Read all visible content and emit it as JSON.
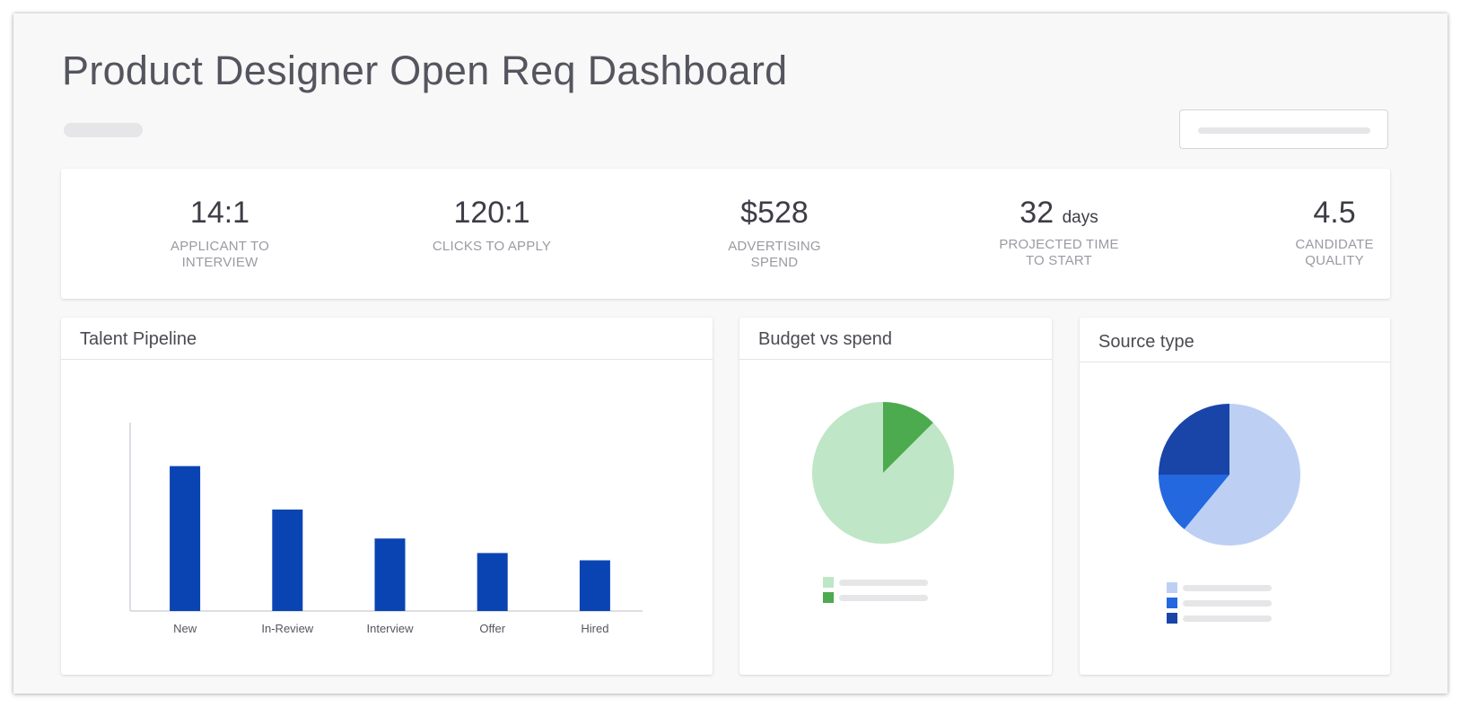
{
  "header": {
    "title": "Product Designer Open Req Dashboard"
  },
  "kpis": [
    {
      "value": "14:1",
      "unit": "",
      "label_line1": "APPLICANT TO",
      "label_line2": "INTERVIEW"
    },
    {
      "value": "120:1",
      "unit": "",
      "label_line1": "CLICKS TO APPLY",
      "label_line2": ""
    },
    {
      "value": "$528",
      "unit": "",
      "label_line1": "ADVERTISING",
      "label_line2": "SPEND"
    },
    {
      "value": "32",
      "unit": "days",
      "label_line1": "PROJECTED TIME",
      "label_line2": "TO START"
    },
    {
      "value": "4.5",
      "unit": "",
      "label_line1": "CANDIDATE",
      "label_line2": "QUALITY"
    }
  ],
  "panels": {
    "pipeline": {
      "title": "Talent Pipeline"
    },
    "budget": {
      "title": "Budget vs spend"
    },
    "source": {
      "title": "Source type"
    }
  },
  "chart_data": [
    {
      "type": "bar",
      "title": "Talent Pipeline",
      "categories": [
        "New",
        "In-Review",
        "Interview",
        "Offer",
        "Hired"
      ],
      "values": [
        100,
        70,
        50,
        40,
        35
      ],
      "ylim": [
        0,
        130
      ],
      "grid": false,
      "color": "#0a44b3"
    },
    {
      "type": "pie",
      "title": "Budget vs spend",
      "slices": [
        {
          "value": 87.5,
          "color": "#bfe6c6"
        },
        {
          "value": 12.5,
          "color": "#4caa4f"
        }
      ],
      "start": "top",
      "direction": "counterclockwise",
      "legend": "bottom"
    },
    {
      "type": "pie",
      "title": "Source type",
      "slices": [
        {
          "value": 61,
          "color": "#bdd0f4"
        },
        {
          "value": 14,
          "color": "#2468e0"
        },
        {
          "value": 25,
          "color": "#1945a8"
        }
      ],
      "start": "top",
      "direction": "clockwise",
      "legend": "bottom"
    }
  ]
}
